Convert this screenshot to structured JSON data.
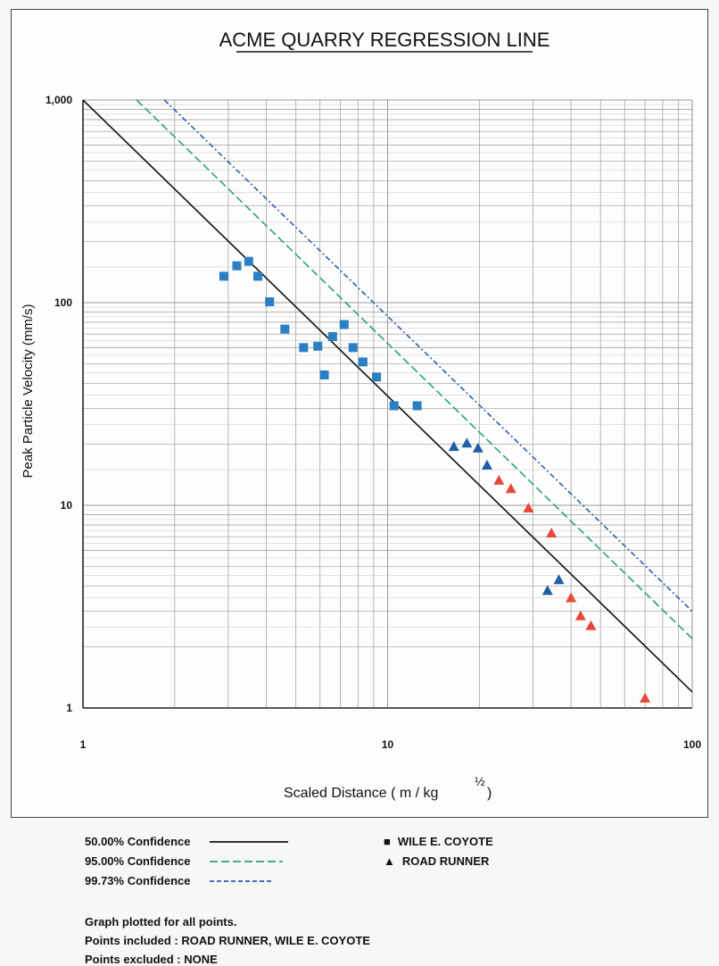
{
  "chart_data": {
    "type": "scatter",
    "title": "ACME QUARRY REGRESSION LINE",
    "xlabel": "Scaled Distance ( m / kg ",
    "xlabel_exponent": "½",
    "xlabel_tail": ")",
    "ylabel": "Peak Particle Velocity (mm/s)",
    "x_scale": "log",
    "y_scale": "log",
    "xlim": [
      1,
      100
    ],
    "ylim": [
      1,
      1000
    ],
    "grid": true,
    "x_ticks": [
      {
        "value": 1,
        "label": "1"
      },
      {
        "value": 10,
        "label": "10"
      },
      {
        "value": 100,
        "label": "100"
      }
    ],
    "y_ticks": [
      {
        "value": 1,
        "label": "1"
      },
      {
        "value": 10,
        "label": "10"
      },
      {
        "value": 100,
        "label": "100"
      },
      {
        "value": 1000,
        "label": "1,000"
      }
    ],
    "lines": [
      {
        "name": "50.00% Confidence",
        "color": "#111111",
        "style": "solid",
        "points": [
          [
            1,
            1000
          ],
          [
            100,
            1.2
          ]
        ]
      },
      {
        "name": "95.00% Confidence",
        "color": "#2aa37a",
        "style": "dashed",
        "points": [
          [
            1.5,
            1000
          ],
          [
            100,
            2.2
          ]
        ]
      },
      {
        "name": "99.73% Confidence",
        "color": "#2a5fb0",
        "style": "dashdot",
        "points": [
          [
            1.85,
            1000
          ],
          [
            100,
            3.0
          ]
        ]
      }
    ],
    "series": [
      {
        "name": "WILE E. COYOTE",
        "marker": "square",
        "color": "#2b7fc4",
        "points": [
          [
            2.9,
            135
          ],
          [
            3.2,
            152
          ],
          [
            3.5,
            160
          ],
          [
            3.75,
            135
          ],
          [
            4.1,
            101
          ],
          [
            4.6,
            74
          ],
          [
            5.3,
            60
          ],
          [
            5.9,
            61
          ],
          [
            6.2,
            44
          ],
          [
            6.6,
            68
          ],
          [
            7.2,
            78
          ],
          [
            7.7,
            60
          ],
          [
            8.3,
            51
          ],
          [
            9.2,
            43
          ],
          [
            10.5,
            31
          ],
          [
            12.5,
            31
          ]
        ]
      },
      {
        "name": "ROAD RUNNER",
        "marker": "triangle",
        "points": [
          {
            "x": 16.5,
            "y": 19.5,
            "color": "#1f5fa8"
          },
          {
            "x": 18.2,
            "y": 20.3,
            "color": "#1f5fa8"
          },
          {
            "x": 19.8,
            "y": 19.2,
            "color": "#1f5fa8"
          },
          {
            "x": 21.2,
            "y": 15.8,
            "color": "#1f5fa8"
          },
          {
            "x": 23.2,
            "y": 13.3,
            "color": "#e8483a"
          },
          {
            "x": 25.4,
            "y": 12.1,
            "color": "#e8483a"
          },
          {
            "x": 29.0,
            "y": 9.7,
            "color": "#e8483a"
          },
          {
            "x": 34.5,
            "y": 7.3,
            "color": "#e8483a"
          },
          {
            "x": 33.5,
            "y": 3.8,
            "color": "#1f5fa8"
          },
          {
            "x": 36.5,
            "y": 4.3,
            "color": "#1f5fa8"
          },
          {
            "x": 40.0,
            "y": 3.5,
            "color": "#e8483a"
          },
          {
            "x": 43.0,
            "y": 2.85,
            "color": "#e8483a"
          },
          {
            "x": 46.5,
            "y": 2.55,
            "color": "#e8483a"
          },
          {
            "x": 70.0,
            "y": 1.12,
            "color": "#e8483a"
          }
        ]
      }
    ]
  },
  "legend": {
    "lines": [
      {
        "label": "50.00% Confidence",
        "color": "#111111",
        "dash": "none"
      },
      {
        "label": "95.00% Confidence",
        "color": "#2aa37a",
        "dash": "9 4"
      },
      {
        "label": "99.73% Confidence",
        "color": "#2a5fb0",
        "dash": "5 3"
      }
    ],
    "markers": [
      {
        "label": "WILE E. COYOTE",
        "symbol": "■"
      },
      {
        "label": "ROAD RUNNER",
        "symbol": "▲"
      }
    ]
  },
  "notes": {
    "line1": "Graph plotted for all points.",
    "line2": "Points included : ROAD RUNNER, WILE E. COYOTE",
    "line3": "Points excluded : NONE"
  }
}
